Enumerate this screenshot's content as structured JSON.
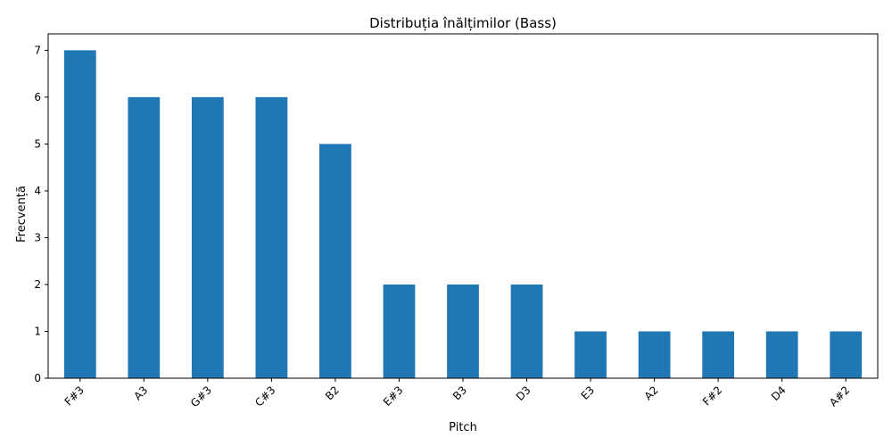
{
  "chart_data": {
    "type": "bar",
    "title": "Distribuția înălțimilor (Bass)",
    "xlabel": "Pitch",
    "ylabel": "Frecvență",
    "categories": [
      "F#3",
      "A3",
      "G#3",
      "C#3",
      "B2",
      "E#3",
      "B3",
      "D3",
      "E3",
      "A2",
      "F#2",
      "D4",
      "A#2"
    ],
    "values": [
      7,
      6,
      6,
      6,
      5,
      2,
      2,
      2,
      1,
      1,
      1,
      1,
      1
    ],
    "ylim": [
      0,
      7.35
    ],
    "yticks": [
      0,
      1,
      2,
      3,
      4,
      5,
      6,
      7
    ],
    "grid": false,
    "legend": "none",
    "bar_color": "#1f77b4"
  }
}
